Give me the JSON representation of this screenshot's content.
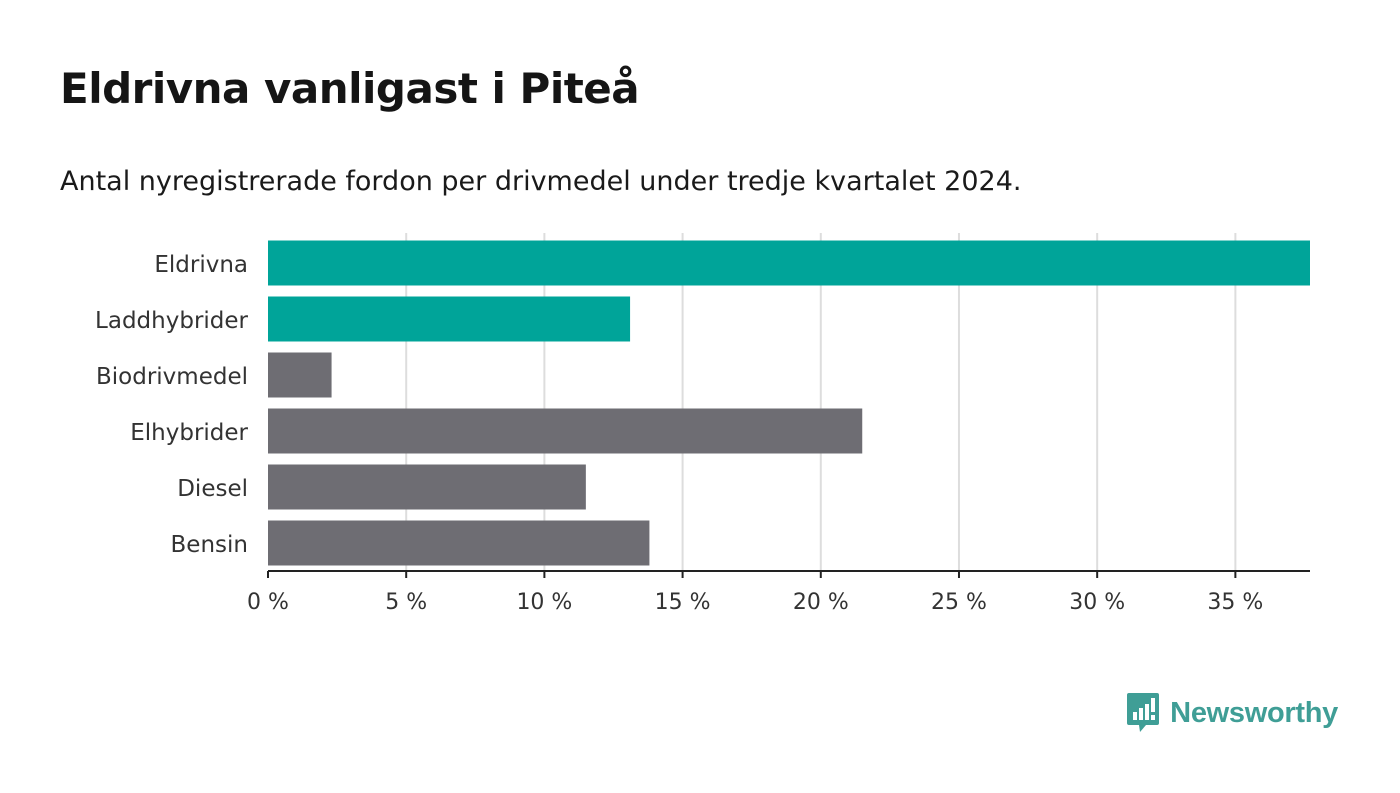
{
  "header": {
    "title": "Eldrivna vanligast i Piteå",
    "subtitle": "Antal nyregistrerade fordon per drivmedel under tredje kvartalet 2024."
  },
  "colors": {
    "highlight": "#00a499",
    "default": "#6e6d73",
    "grid": "#dddddd",
    "axis": "#222222",
    "brand": "#3f9e96"
  },
  "chart_data": {
    "type": "bar",
    "orientation": "horizontal",
    "title": "Eldrivna vanligast i Piteå",
    "subtitle": "Antal nyregistrerade fordon per drivmedel under tredje kvartalet 2024.",
    "categories": [
      "Eldrivna",
      "Laddhybrider",
      "Biodrivmedel",
      "Elhybrider",
      "Diesel",
      "Bensin"
    ],
    "values": [
      37.7,
      13.1,
      2.3,
      21.5,
      11.5,
      13.8
    ],
    "highlighted": [
      true,
      true,
      false,
      false,
      false,
      false
    ],
    "xlim": [
      0,
      37.7
    ],
    "xticks": [
      0,
      5,
      10,
      15,
      20,
      25,
      30,
      35
    ],
    "xtick_labels": [
      "0 %",
      "5 %",
      "10 %",
      "15 %",
      "20 %",
      "25 %",
      "30 %",
      "35 %"
    ],
    "xlabel": "",
    "ylabel": "",
    "grid": true
  },
  "brand": {
    "name": "Newsworthy"
  }
}
